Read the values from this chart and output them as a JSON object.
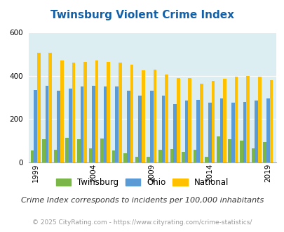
{
  "title": "Twinsburg Violent Crime Index",
  "subtitle": "Crime Index corresponds to incidents per 100,000 inhabitants",
  "footer": "© 2025 CityRating.com - https://www.cityrating.com/crime-statistics/",
  "years": [
    1999,
    2000,
    2001,
    2002,
    2003,
    2004,
    2005,
    2006,
    2007,
    2008,
    2009,
    2010,
    2011,
    2012,
    2013,
    2014,
    2015,
    2016,
    2017,
    2018,
    2019
  ],
  "twinsburg": [
    55,
    108,
    60,
    113,
    107,
    65,
    110,
    55,
    42,
    27,
    27,
    57,
    62,
    50,
    60,
    27,
    120,
    108,
    100,
    65,
    95
  ],
  "ohio": [
    335,
    355,
    330,
    340,
    350,
    355,
    350,
    350,
    330,
    310,
    330,
    310,
    270,
    285,
    290,
    275,
    295,
    275,
    280,
    285,
    295
  ],
  "national": [
    505,
    505,
    470,
    460,
    465,
    470,
    465,
    460,
    450,
    425,
    430,
    405,
    390,
    390,
    365,
    375,
    385,
    395,
    400,
    395,
    380
  ],
  "bar_colors": {
    "twinsburg": "#7ab648",
    "ohio": "#5b9bd5",
    "national": "#ffc000"
  },
  "bg_color": "#ddeef3",
  "ylim": [
    0,
    600
  ],
  "yticks": [
    0,
    200,
    400,
    600
  ],
  "xtick_years": [
    1999,
    2004,
    2009,
    2014,
    2019
  ],
  "title_color": "#1460a8",
  "subtitle_color": "#333333",
  "footer_color": "#999999",
  "legend_labels": [
    "Twinsburg",
    "Ohio",
    "National"
  ],
  "title_fontsize": 11,
  "subtitle_fontsize": 8,
  "footer_fontsize": 6.5
}
